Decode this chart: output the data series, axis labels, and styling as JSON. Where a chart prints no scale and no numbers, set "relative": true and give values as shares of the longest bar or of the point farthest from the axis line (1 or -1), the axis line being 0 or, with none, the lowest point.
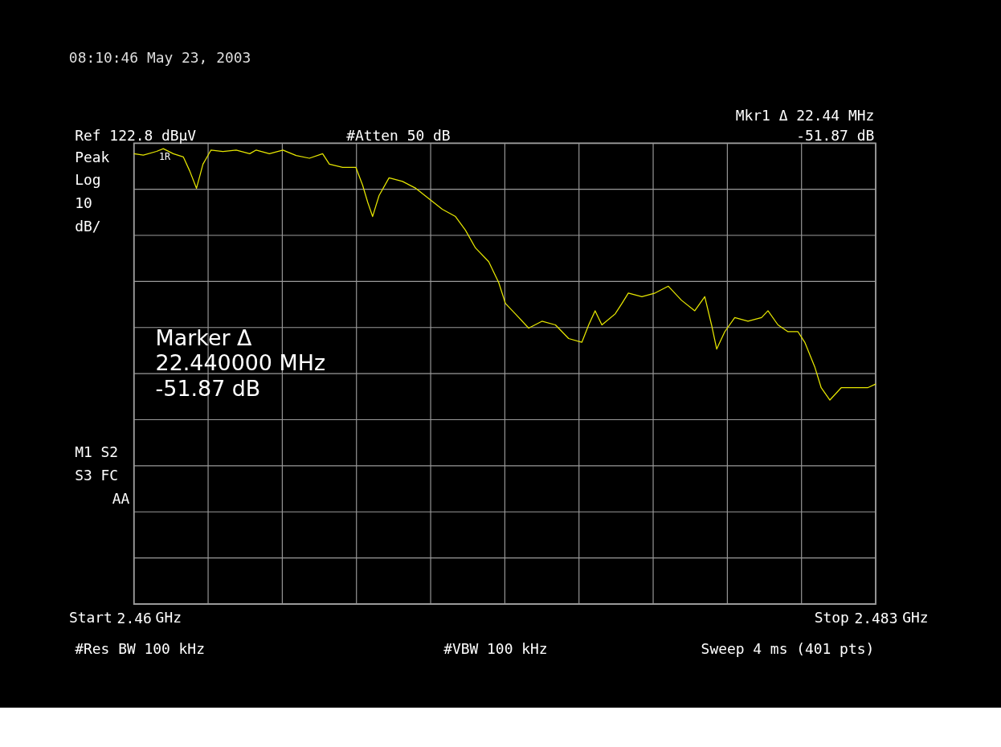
{
  "chart_data": {
    "type": "line",
    "title": "08:10:46  May 23, 2003",
    "relative": true,
    "grid": true,
    "marker": "none",
    "line_style": "solid",
    "tick_labels": "x",
    "xlim": [
      2.46,
      2.483
    ],
    "xticks": [
      2.46,
      2.483
    ],
    "annotations": [
      "Mkr1 Δ  22.44 MHz",
      "-51.87 dB",
      "Ref 122.8 dBµV",
      "#Atten 50 dB",
      "Peak",
      "Log",
      "10",
      "dB/",
      "Marker Δ",
      "22.440000 MHz",
      "-51.87 dB",
      "M1  S2",
      "S3  FC",
      "AA",
      "#Res BW 100 kHz",
      "#VBW 100 kHz",
      "Sweep 4 ms (401 pts)",
      "Start",
      "GHz",
      "Stop",
      "GHz",
      {
        "text": "1R",
        "x": 2.46091,
        "y": 1
      }
    ],
    "series": [
      {
        "color": "#e6e600",
        "x": [
          2.46,
          2.46029,
          2.4607,
          2.46091,
          2.46122,
          2.46153,
          2.46173,
          2.46194,
          2.46214,
          2.46239,
          2.46276,
          2.46317,
          2.46359,
          2.46379,
          2.4642,
          2.46462,
          2.46503,
          2.46544,
          2.46585,
          2.46606,
          2.46647,
          2.46688,
          2.46709,
          2.46725,
          2.4674,
          2.4676,
          2.46791,
          2.46833,
          2.46874,
          2.46915,
          2.46956,
          2.46997,
          2.47028,
          2.47059,
          2.471,
          2.47131,
          2.47152,
          2.47183,
          2.47224,
          2.47265,
          2.47307,
          2.47348,
          2.47389,
          2.4741,
          2.4743,
          2.47451,
          2.47492,
          2.47513,
          2.47533,
          2.47575,
          2.47616,
          2.47657,
          2.47698,
          2.47739,
          2.4777,
          2.47791,
          2.47807,
          2.47832,
          2.47863,
          2.47904,
          2.47946,
          2.47966,
          2.47997,
          2.48028,
          2.48059,
          2.4808,
          2.48111,
          2.48131,
          2.48158,
          2.48193,
          2.48234,
          2.48275,
          2.483
        ],
        "values": [
          0.989,
          0.986,
          0.994,
          1,
          0.989,
          0.982,
          0.951,
          0.913,
          0.966,
          0.997,
          0.994,
          0.997,
          0.989,
          0.997,
          0.989,
          0.997,
          0.985,
          0.979,
          0.989,
          0.966,
          0.959,
          0.959,
          0.92,
          0.882,
          0.851,
          0.897,
          0.936,
          0.928,
          0.913,
          0.89,
          0.867,
          0.851,
          0.821,
          0.782,
          0.752,
          0.706,
          0.66,
          0.637,
          0.606,
          0.621,
          0.613,
          0.583,
          0.575,
          0.613,
          0.644,
          0.613,
          0.637,
          0.66,
          0.683,
          0.675,
          0.683,
          0.698,
          0.667,
          0.644,
          0.675,
          0.613,
          0.56,
          0.598,
          0.629,
          0.621,
          0.629,
          0.644,
          0.613,
          0.598,
          0.598,
          0.575,
          0.521,
          0.475,
          0.448,
          0.475,
          0.475,
          0.475,
          0.483
        ]
      }
    ]
  }
}
